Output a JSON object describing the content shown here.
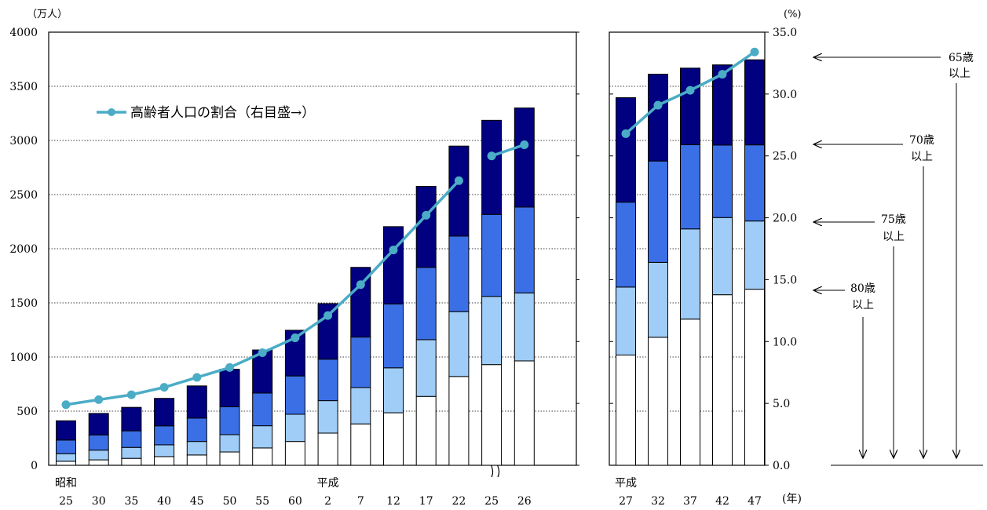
{
  "chart_data": {
    "type": "bar",
    "stacked": true,
    "y_left_unit": "（万人）",
    "y_right_unit": "(%)",
    "x_unit": "(年)",
    "y_left_ticks": [
      "4000",
      "3500",
      "3000",
      "2500",
      "2000",
      "1500",
      "1000",
      "500",
      "0"
    ],
    "y_right_ticks": [
      "35.0",
      "30.0",
      "25.0",
      "20.0",
      "15.0",
      "10.0",
      "5.0",
      "0.0"
    ],
    "ylim_left": [
      0,
      4000
    ],
    "ylim_right": [
      0,
      35
    ],
    "legend_label": "高齢者人口の割合（右目盛→）",
    "colors": {
      "line": "#4bacc6",
      "s65": "#000080",
      "s70": "#3b6fe6",
      "s75": "#9fcdf7",
      "s80": "#ffffff"
    },
    "panels": [
      {
        "categories": [
          "25",
          "30",
          "35",
          "40",
          "45",
          "50",
          "55",
          "60",
          "2",
          "7",
          "12",
          "17",
          "22",
          "25",
          "26"
        ],
        "era_labels": [
          {
            "index": 0,
            "label": "昭和"
          },
          {
            "index": 8,
            "label": "平成"
          }
        ],
        "s80": [
          37,
          50,
          64,
          80,
          95,
          123,
          160,
          220,
          297,
          382,
          485,
          636,
          820,
          930,
          964
        ],
        "s75": [
          107,
          140,
          165,
          189,
          220,
          283,
          365,
          471,
          597,
          718,
          900,
          1160,
          1419,
          1560,
          1592
        ],
        "s70": [
          233,
          280,
          318,
          364,
          436,
          540,
          667,
          825,
          980,
          1184,
          1490,
          1828,
          2117,
          2317,
          2385
        ],
        "s65": [
          411,
          479,
          535,
          618,
          733,
          887,
          1065,
          1247,
          1493,
          1828,
          2204,
          2576,
          2948,
          3186,
          3300
        ],
        "ratio": [
          4.9,
          5.3,
          5.7,
          6.3,
          7.1,
          7.9,
          9.1,
          10.3,
          12.1,
          14.6,
          17.4,
          20.2,
          23.0,
          25.0,
          25.9
        ],
        "ratio_segments": [
          [
            0,
            12
          ],
          [
            13,
            14
          ]
        ]
      },
      {
        "categories": [
          "27",
          "32",
          "37",
          "42",
          "47"
        ],
        "era_labels": [
          {
            "index": 0,
            "label": "平成"
          }
        ],
        "s80": [
          1018,
          1182,
          1350,
          1575,
          1626
        ],
        "s75": [
          1646,
          1874,
          2183,
          2288,
          2256
        ],
        "s70": [
          2430,
          2810,
          2961,
          2957,
          2959
        ],
        "s65": [
          3395,
          3612,
          3668,
          3698,
          3745
        ],
        "ratio": [
          26.8,
          29.1,
          30.3,
          31.6,
          33.4
        ],
        "ratio_segments": [
          [
            0,
            4
          ]
        ]
      }
    ],
    "annotations": [
      {
        "line1": "65歳",
        "line2": "以上"
      },
      {
        "line1": "70歳",
        "line2": "以上"
      },
      {
        "line1": "75歳",
        "line2": "以上"
      },
      {
        "line1": "80歳",
        "line2": "以上"
      }
    ]
  }
}
